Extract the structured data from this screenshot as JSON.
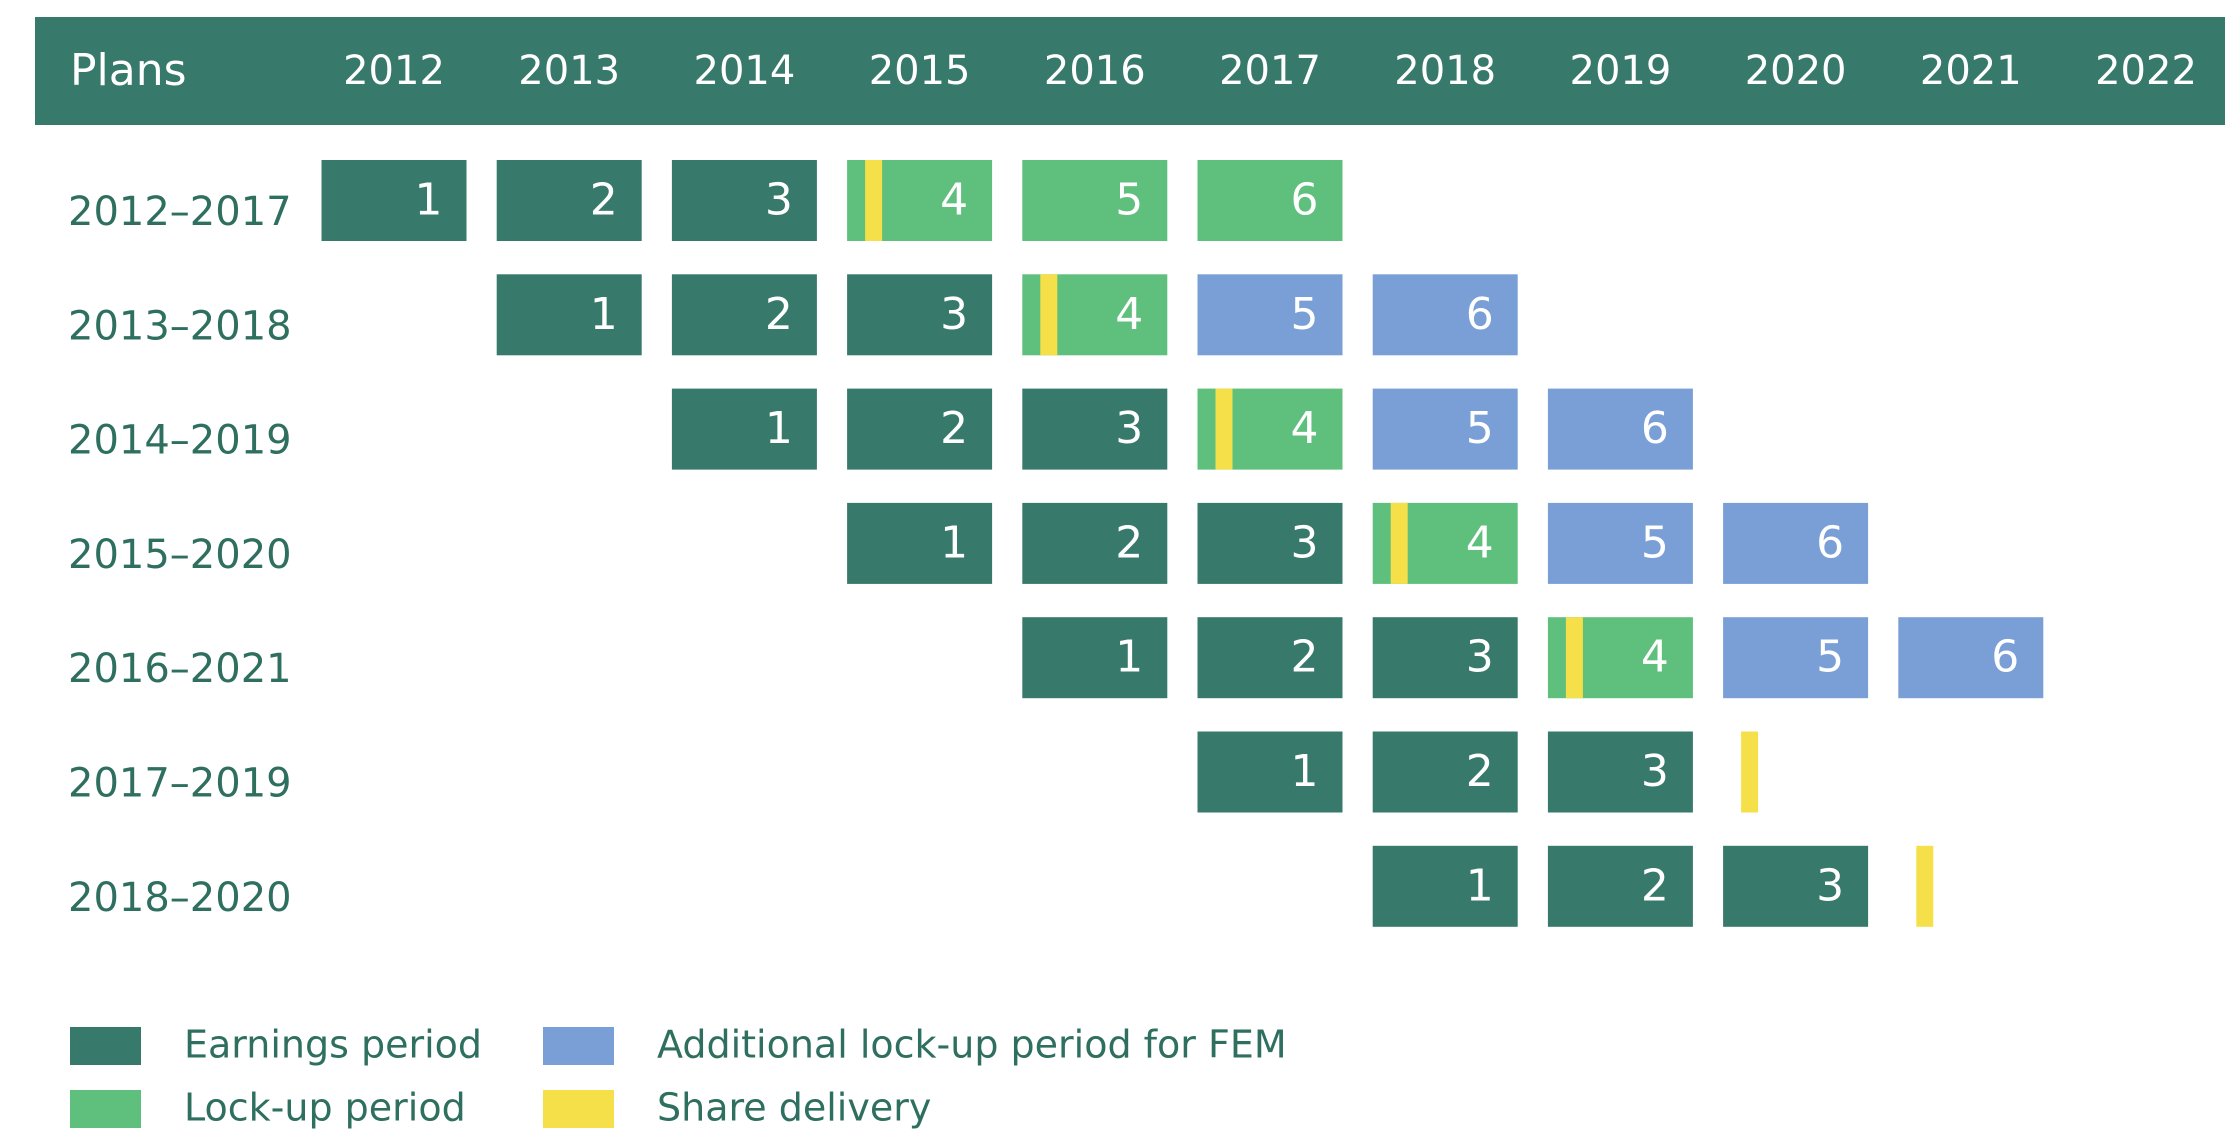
{
  "header": {
    "title": "Plans",
    "years": [
      "2012",
      "2013",
      "2014",
      "2015",
      "2016",
      "2017",
      "2018",
      "2019",
      "2020",
      "2021",
      "2022"
    ],
    "color": "#37796b"
  },
  "plans": [
    {
      "label": "2012–2017",
      "cells": [
        {
          "year": "2012",
          "label": "1",
          "color": "#37796b"
        },
        {
          "year": "2013",
          "label": "2",
          "color": "#37796b"
        },
        {
          "year": "2014",
          "label": "3",
          "color": "#37796b"
        },
        {
          "year": "2015",
          "label": "4",
          "color": "#5fbf7c",
          "stripe": "#f5e04a"
        },
        {
          "year": "2016",
          "label": "5",
          "color": "#5fbf7c"
        },
        {
          "year": "2017",
          "label": "6",
          "color": "#5fbf7c"
        }
      ]
    },
    {
      "label": "2013–2018",
      "cells": [
        {
          "year": "2013",
          "label": "1",
          "color": "#37796b"
        },
        {
          "year": "2014",
          "label": "2",
          "color": "#37796b"
        },
        {
          "year": "2015",
          "label": "3",
          "color": "#37796b"
        },
        {
          "year": "2016",
          "label": "4",
          "color": "#5fbf7c",
          "stripe": "#f5e04a"
        },
        {
          "year": "2017",
          "label": "5",
          "color": "#7a9fd6"
        },
        {
          "year": "2018",
          "label": "6",
          "color": "#7a9fd6"
        }
      ]
    },
    {
      "label": "2014–2019",
      "cells": [
        {
          "year": "2014",
          "label": "1",
          "color": "#37796b"
        },
        {
          "year": "2015",
          "label": "2",
          "color": "#37796b"
        },
        {
          "year": "2016",
          "label": "3",
          "color": "#37796b"
        },
        {
          "year": "2017",
          "label": "4",
          "color": "#5fbf7c",
          "stripe": "#f5e04a"
        },
        {
          "year": "2018",
          "label": "5",
          "color": "#7a9fd6"
        },
        {
          "year": "2019",
          "label": "6",
          "color": "#7a9fd6"
        }
      ]
    },
    {
      "label": "2015–2020",
      "cells": [
        {
          "year": "2015",
          "label": "1",
          "color": "#37796b"
        },
        {
          "year": "2016",
          "label": "2",
          "color": "#37796b"
        },
        {
          "year": "2017",
          "label": "3",
          "color": "#37796b"
        },
        {
          "year": "2018",
          "label": "4",
          "color": "#5fbf7c",
          "stripe": "#f5e04a"
        },
        {
          "year": "2019",
          "label": "5",
          "color": "#7a9fd6"
        },
        {
          "year": "2020",
          "label": "6",
          "color": "#7a9fd6"
        }
      ]
    },
    {
      "label": "2016–2021",
      "cells": [
        {
          "year": "2016",
          "label": "1",
          "color": "#37796b"
        },
        {
          "year": "2017",
          "label": "2",
          "color": "#37796b"
        },
        {
          "year": "2018",
          "label": "3",
          "color": "#37796b"
        },
        {
          "year": "2019",
          "label": "4",
          "color": "#5fbf7c",
          "stripe": "#f5e04a"
        },
        {
          "year": "2020",
          "label": "5",
          "color": "#7a9fd6"
        },
        {
          "year": "2021",
          "label": "6",
          "color": "#7a9fd6"
        }
      ]
    },
    {
      "label": "2017–2019",
      "cells": [
        {
          "year": "2017",
          "label": "1",
          "color": "#37796b"
        },
        {
          "year": "2018",
          "label": "2",
          "color": "#37796b"
        },
        {
          "year": "2019",
          "label": "3",
          "color": "#37796b"
        },
        {
          "year": "2020",
          "stripe": "#f5e04a"
        }
      ]
    },
    {
      "label": "2018–2020",
      "cells": [
        {
          "year": "2018",
          "label": "1",
          "color": "#37796b"
        },
        {
          "year": "2019",
          "label": "2",
          "color": "#37796b"
        },
        {
          "year": "2020",
          "label": "3",
          "color": "#37796b"
        },
        {
          "year": "2021",
          "stripe": "#f5e04a"
        }
      ]
    }
  ],
  "legend": [
    {
      "label": "Earnings period",
      "color": "#37796b"
    },
    {
      "label": "Lock-up period",
      "color": "#5fbf7c"
    },
    {
      "label": "Additional lock-up period for FEM",
      "color": "#7a9fd6"
    },
    {
      "label": "Share delivery",
      "color": "#f5e04a"
    }
  ]
}
